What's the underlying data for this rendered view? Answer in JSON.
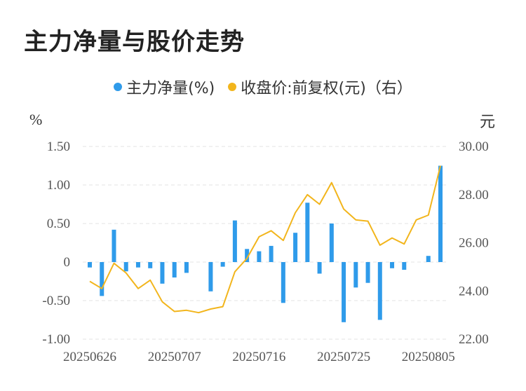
{
  "title": "主力净量与股价走势",
  "legend": [
    {
      "label": "主力净量(%)",
      "color": "#2f9bea"
    },
    {
      "label": "收盘价:前复权(元)（右）",
      "color": "#f2b51c"
    }
  ],
  "units": {
    "left": "%",
    "right": "元"
  },
  "chart_data": {
    "type": "bar",
    "x_tick_labels": [
      "20250626",
      "20250707",
      "20250716",
      "20250725",
      "20250805"
    ],
    "x_tick_indices": [
      0,
      7,
      14,
      21,
      28
    ],
    "y_left": {
      "min": -1.0,
      "max": 1.5,
      "ticks": [
        1.5,
        1.0,
        0.5,
        0,
        -0.5,
        -1.0
      ],
      "tick_labels": [
        "1.50",
        "1.00",
        "0.50",
        "0",
        "-0.50",
        "-1.00"
      ]
    },
    "y_right": {
      "min": 22.0,
      "max": 30.0,
      "ticks": [
        30,
        28,
        26,
        24,
        22
      ],
      "tick_labels": [
        "30.00",
        "28.00",
        "26.00",
        "24.00",
        "22.00"
      ]
    },
    "grid": true,
    "legend_position": "top-center",
    "series": [
      {
        "name": "主力净量(%)",
        "type": "bar",
        "axis": "left",
        "color": "#2f9bea",
        "values": [
          -0.07,
          -0.44,
          0.42,
          -0.12,
          -0.07,
          -0.08,
          -0.28,
          -0.2,
          -0.14,
          0.0,
          -0.38,
          -0.06,
          0.54,
          0.17,
          0.14,
          0.21,
          -0.53,
          0.38,
          0.77,
          -0.15,
          0.5,
          -0.78,
          -0.33,
          -0.27,
          -0.75,
          -0.08,
          -0.1,
          0.0,
          0.08,
          1.25
        ]
      },
      {
        "name": "收盘价:前复权(元)（右）",
        "type": "line",
        "axis": "right",
        "color": "#f2b51c",
        "values": [
          24.4,
          24.1,
          25.15,
          24.75,
          24.1,
          24.45,
          23.55,
          23.15,
          23.2,
          23.1,
          23.25,
          23.35,
          24.8,
          25.35,
          26.25,
          26.5,
          26.1,
          27.25,
          28.0,
          27.6,
          28.5,
          27.4,
          26.95,
          26.9,
          25.9,
          26.2,
          25.95,
          26.95,
          27.15,
          29.2
        ]
      }
    ]
  }
}
